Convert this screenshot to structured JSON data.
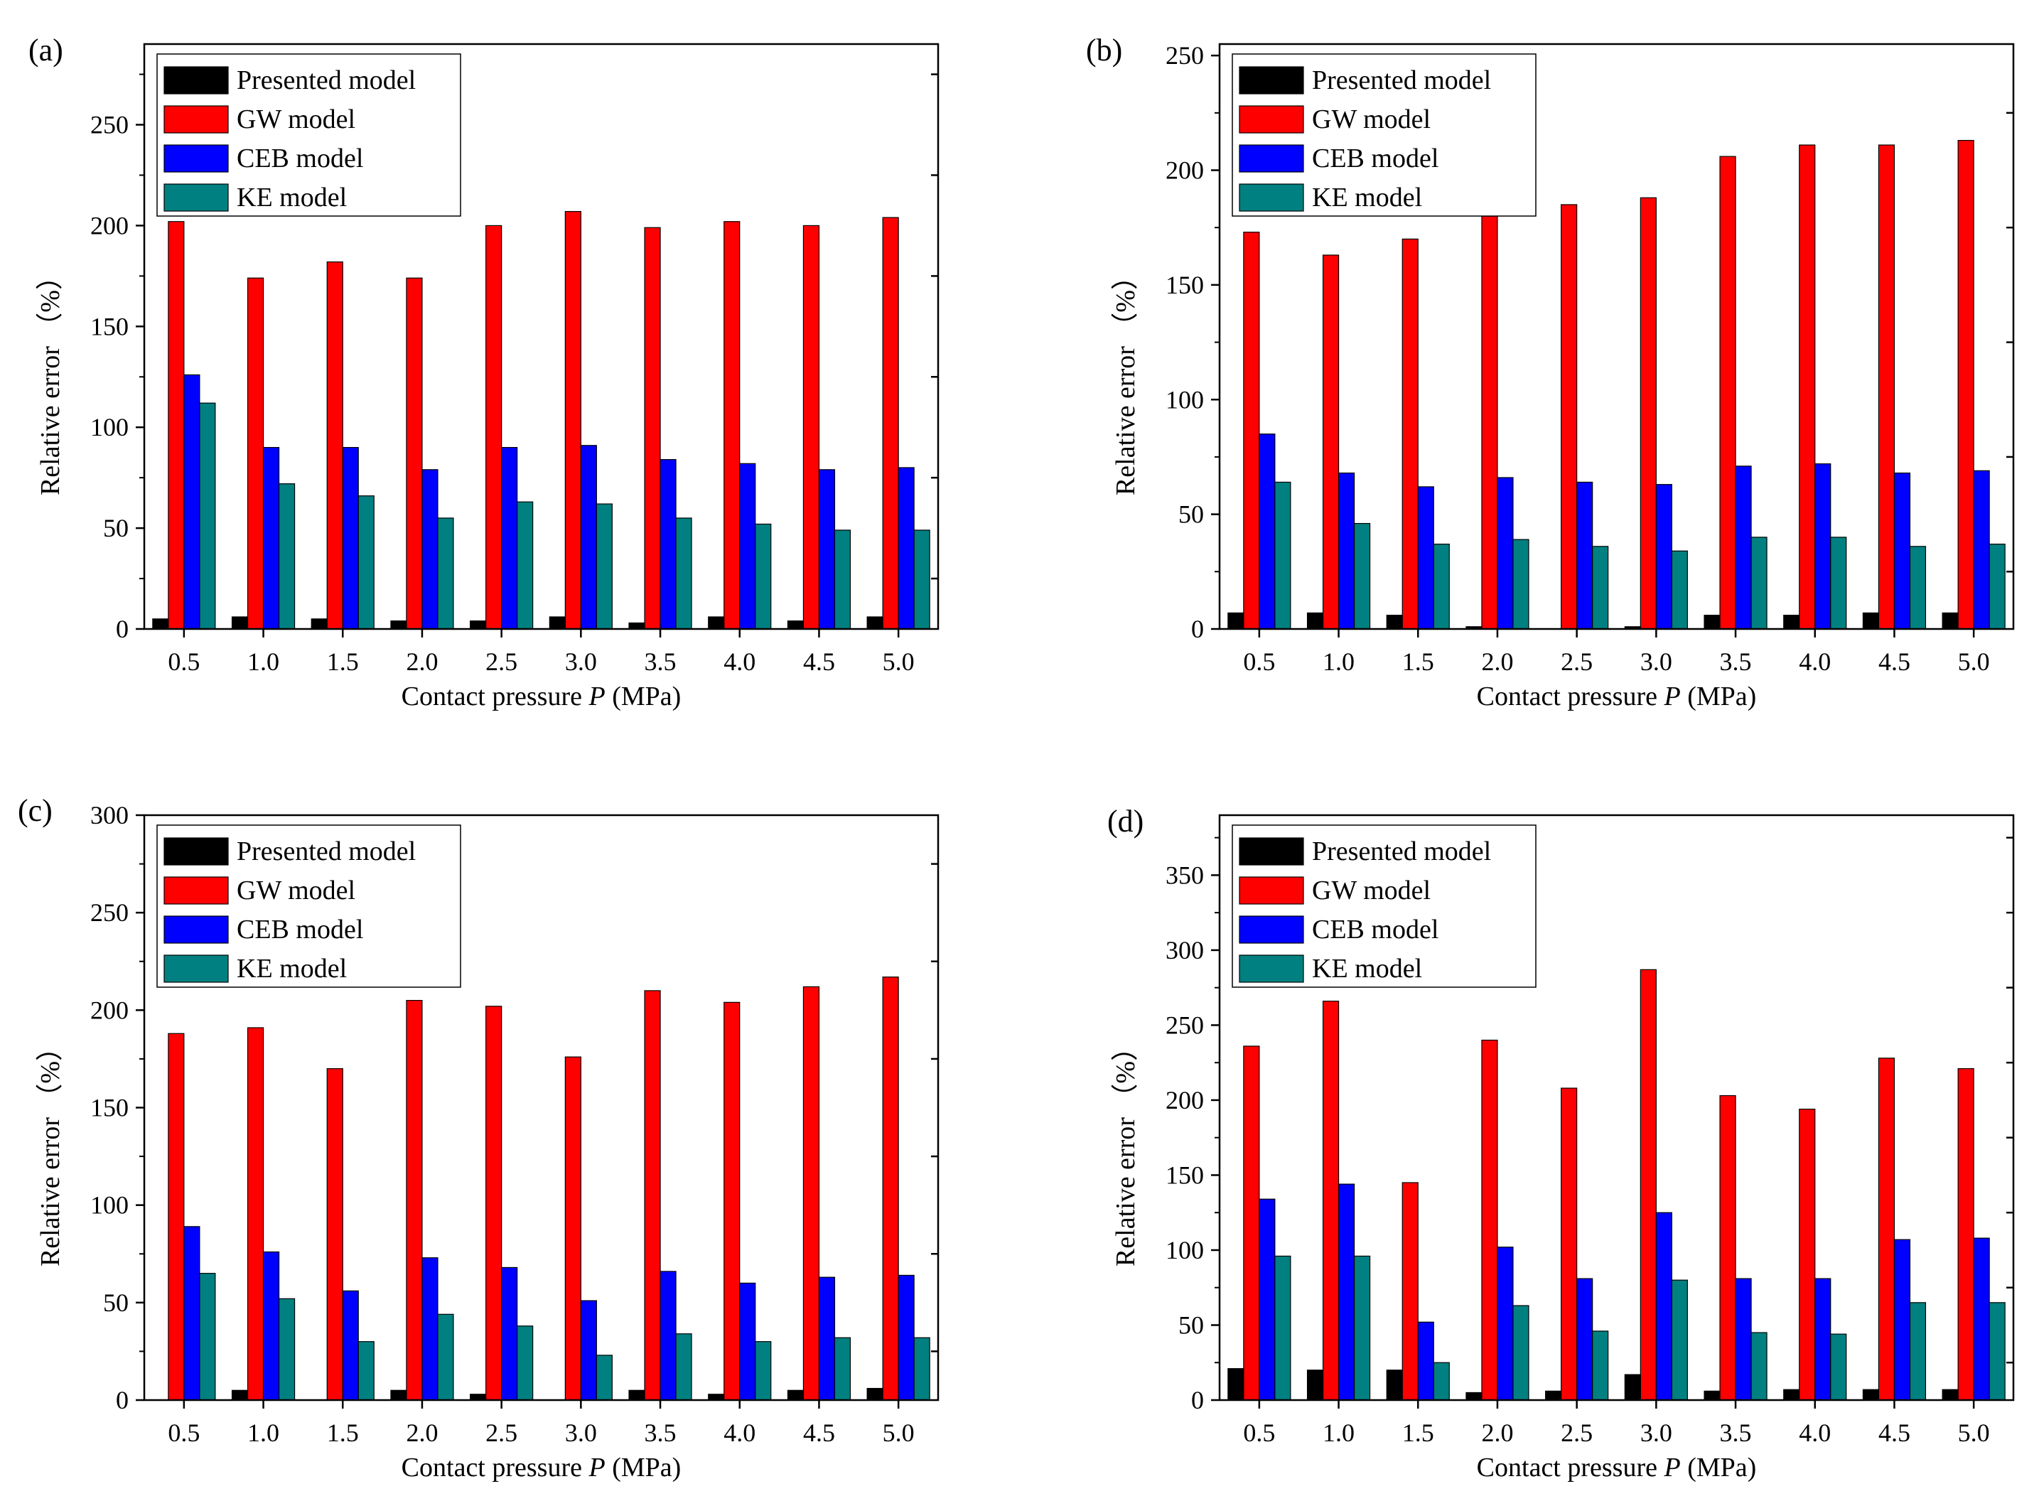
{
  "figure": {
    "xlabel_prefix": "Contact pressure ",
    "xlabel_var": "P",
    "xlabel_suffix": " (MPa)",
    "ylabel": "Relative error （%）",
    "legend_entries": [
      "Presented model",
      "GW model",
      "CEB model",
      "KE model"
    ],
    "colors": {
      "Presented model": "#000000",
      "GW model": "#ff0000",
      "CEB model": "#0000ff",
      "KE model": "#008080"
    }
  },
  "chart_data": [
    {
      "panel_label": "(a)",
      "type": "bar",
      "categories": [
        "0.5",
        "1.0",
        "1.5",
        "2.0",
        "2.5",
        "3.0",
        "3.5",
        "4.0",
        "4.5",
        "5.0"
      ],
      "ylim": [
        0,
        290
      ],
      "yticks": [
        0,
        50,
        100,
        150,
        200,
        250
      ],
      "series": [
        {
          "name": "Presented model",
          "values": [
            5,
            6,
            5,
            4,
            4,
            6,
            3,
            6,
            4,
            6
          ]
        },
        {
          "name": "GW model",
          "values": [
            202,
            174,
            182,
            174,
            200,
            207,
            199,
            202,
            200,
            204
          ]
        },
        {
          "name": "CEB model",
          "values": [
            126,
            90,
            90,
            79,
            90,
            91,
            84,
            82,
            79,
            80
          ]
        },
        {
          "name": "KE model",
          "values": [
            112,
            72,
            66,
            55,
            63,
            62,
            55,
            52,
            49,
            49
          ]
        }
      ]
    },
    {
      "panel_label": "(b)",
      "type": "bar",
      "categories": [
        "0.5",
        "1.0",
        "1.5",
        "2.0",
        "2.5",
        "3.0",
        "3.5",
        "4.0",
        "4.5",
        "5.0"
      ],
      "ylim": [
        0,
        255
      ],
      "yticks": [
        0,
        50,
        100,
        150,
        200,
        250
      ],
      "series": [
        {
          "name": "Presented model",
          "values": [
            7,
            7,
            6,
            1,
            0,
            1,
            6,
            6,
            7,
            7
          ]
        },
        {
          "name": "GW model",
          "values": [
            173,
            163,
            170,
            180,
            185,
            188,
            206,
            211,
            211,
            213
          ]
        },
        {
          "name": "CEB model",
          "values": [
            85,
            68,
            62,
            66,
            64,
            63,
            71,
            72,
            68,
            69
          ]
        },
        {
          "name": "KE model",
          "values": [
            64,
            46,
            37,
            39,
            36,
            34,
            40,
            40,
            36,
            37
          ]
        }
      ]
    },
    {
      "panel_label": "(c)",
      "type": "bar",
      "categories": [
        "0.5",
        "1.0",
        "1.5",
        "2.0",
        "2.5",
        "3.0",
        "3.5",
        "4.0",
        "4.5",
        "5.0"
      ],
      "ylim": [
        0,
        300
      ],
      "yticks": [
        0,
        50,
        100,
        150,
        200,
        250,
        300
      ],
      "series": [
        {
          "name": "Presented model",
          "values": [
            0,
            5,
            0,
            5,
            3,
            0,
            5,
            3,
            5,
            6
          ]
        },
        {
          "name": "GW model",
          "values": [
            188,
            191,
            170,
            205,
            202,
            176,
            210,
            204,
            212,
            217
          ]
        },
        {
          "name": "CEB model",
          "values": [
            89,
            76,
            56,
            73,
            68,
            51,
            66,
            60,
            63,
            64
          ]
        },
        {
          "name": "KE model",
          "values": [
            65,
            52,
            30,
            44,
            38,
            23,
            34,
            30,
            32,
            32
          ]
        }
      ]
    },
    {
      "panel_label": "(d)",
      "type": "bar",
      "categories": [
        "0.5",
        "1.0",
        "1.5",
        "2.0",
        "2.5",
        "3.0",
        "3.5",
        "4.0",
        "4.5",
        "5.0"
      ],
      "ylim": [
        0,
        390
      ],
      "yticks": [
        0,
        50,
        100,
        150,
        200,
        250,
        300,
        350
      ],
      "series": [
        {
          "name": "Presented model",
          "values": [
            21,
            20,
            20,
            5,
            6,
            17,
            6,
            7,
            7,
            7
          ]
        },
        {
          "name": "GW model",
          "values": [
            236,
            266,
            145,
            240,
            208,
            287,
            203,
            194,
            228,
            221
          ]
        },
        {
          "name": "CEB model",
          "values": [
            134,
            144,
            52,
            102,
            81,
            125,
            81,
            81,
            107,
            108
          ]
        },
        {
          "name": "KE model",
          "values": [
            96,
            96,
            25,
            63,
            46,
            80,
            45,
            44,
            65,
            65
          ]
        }
      ]
    }
  ]
}
